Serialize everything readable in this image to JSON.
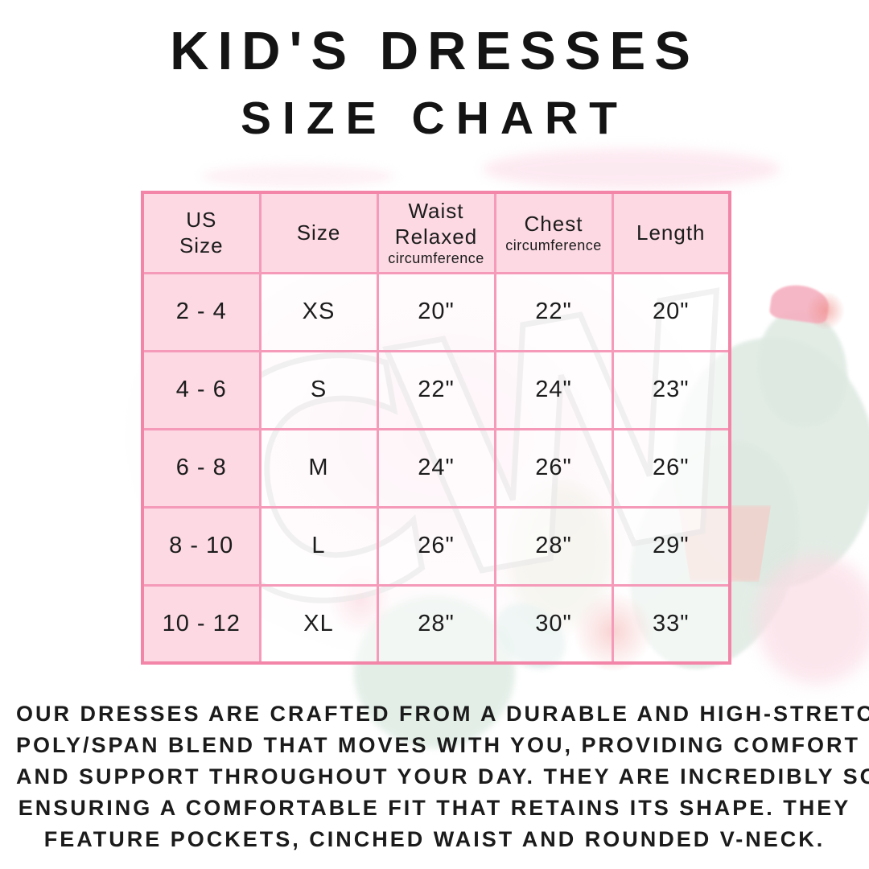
{
  "title": {
    "line1": "KID'S DRESSES",
    "line2": "SIZE CHART"
  },
  "table": {
    "headers": [
      {
        "line1": "US",
        "line2": "Size",
        "sub": ""
      },
      {
        "line1": "Size",
        "line2": "",
        "sub": ""
      },
      {
        "line1": "Waist",
        "line2": "Relaxed",
        "sub": "circumference"
      },
      {
        "line1": "Chest",
        "line2": "",
        "sub": "circumference"
      },
      {
        "line1": "Length",
        "line2": "",
        "sub": ""
      }
    ],
    "rows": [
      [
        "2 - 4",
        "XS",
        "20\"",
        "22\"",
        "20\""
      ],
      [
        "4 - 6",
        "S",
        "22\"",
        "24\"",
        "23\""
      ],
      [
        "6 - 8",
        "M",
        "24\"",
        "26\"",
        "26\""
      ],
      [
        "8 - 10",
        "L",
        "26\"",
        "28\"",
        "29\""
      ],
      [
        "10 - 12",
        "XL",
        "28\"",
        "30\"",
        "33\""
      ]
    ]
  },
  "description": {
    "lines": [
      "OUR DRESSES ARE CRAFTED FROM A DURABLE AND HIGH-STRETCH",
      "POLY/SPAN BLEND THAT MOVES WITH YOU, PROVIDING COMFORT",
      "AND SUPPORT THROUGHOUT YOUR DAY. THEY ARE INCREDIBLY SOFT,",
      "ENSURING A COMFORTABLE FIT THAT RETAINS ITS SHAPE. THEY",
      "FEATURE POCKETS, CINCHED WAIST AND ROUNDED V-NECK."
    ]
  },
  "watermark": {
    "text": "CW"
  },
  "colors": {
    "table_border": "#f285a8",
    "grid_line": "#f59ab9",
    "header_fill": "#fcd9e3",
    "text": "#1c1c1c",
    "cactus_green": "#dde9e1",
    "flower_pink": "#f5b0c0"
  }
}
